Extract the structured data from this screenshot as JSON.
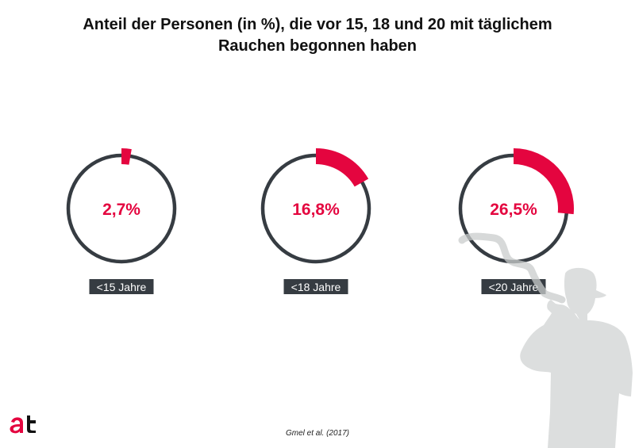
{
  "title": {
    "line1": "Anteil der Personen (in %), die vor 15, 18 und 20 mit täglichem",
    "line2": "Rauchen begonnen haben"
  },
  "source": "Gmel et al. (2017)",
  "logo": {
    "text_a": "a",
    "text_t": "t",
    "name": "at-logo"
  },
  "colors": {
    "accent": "#e4053f",
    "ring": "#363c42",
    "label_bg": "#363c42",
    "silhouette": "#dcdede"
  },
  "illustration": {
    "name": "smoking-person-silhouette"
  },
  "chart_data": {
    "type": "pie",
    "variant": "progress-ring",
    "title": "Anteil der Personen (in %), die vor 15, 18 und 20 mit täglichem Rauchen begonnen haben",
    "categories": [
      "<15 Jahre",
      "<18 Jahre",
      "<20 Jahre"
    ],
    "values": [
      2.7,
      16.8,
      26.5
    ],
    "value_labels": [
      "2,7%",
      "16,8%",
      "26,5%"
    ],
    "unit": "%",
    "max": 100,
    "source": "Gmel et al. (2017)"
  }
}
